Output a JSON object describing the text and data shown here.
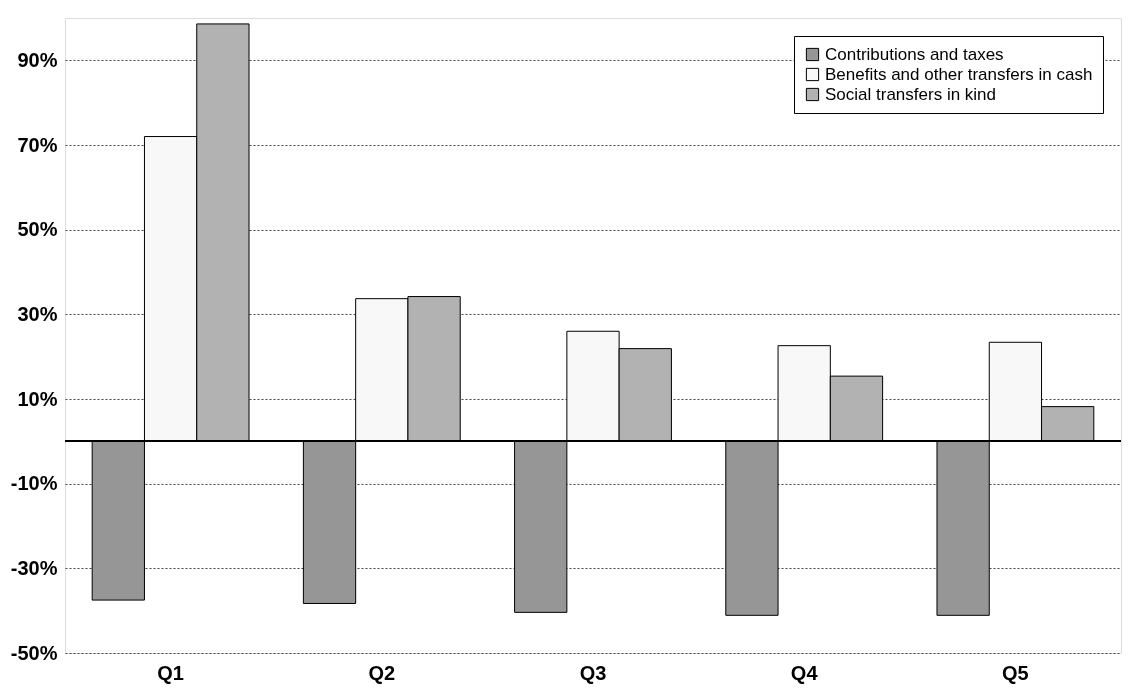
{
  "chart_data": {
    "type": "bar",
    "categories": [
      "Q1",
      "Q2",
      "Q3",
      "Q4",
      "Q5"
    ],
    "series": [
      {
        "name": "Contributions and taxes",
        "color": "#969696",
        "values": [
          -37.5,
          -38.3,
          -40.4,
          -41.1,
          -41.1
        ]
      },
      {
        "name": "Benefits and other transfers in cash",
        "color": "#f8f8f8",
        "values": [
          72,
          33.7,
          26,
          22.6,
          23.4
        ]
      },
      {
        "name": "Social transfers in kind",
        "color": "#b2b2b2",
        "values": [
          98.6,
          34.2,
          21.9,
          15.4,
          8.2
        ]
      }
    ],
    "ylim": [
      -50,
      100
    ],
    "yticks": [
      {
        "value": -50,
        "label": "-50%"
      },
      {
        "value": -30,
        "label": "-30%"
      },
      {
        "value": -10,
        "label": "-10%"
      },
      {
        "value": 10,
        "label": "10%"
      },
      {
        "value": 30,
        "label": "30%"
      },
      {
        "value": 50,
        "label": "50%"
      },
      {
        "value": 70,
        "label": "70%"
      },
      {
        "value": 90,
        "label": "90%"
      }
    ],
    "grid": "y",
    "legend": "top right"
  }
}
